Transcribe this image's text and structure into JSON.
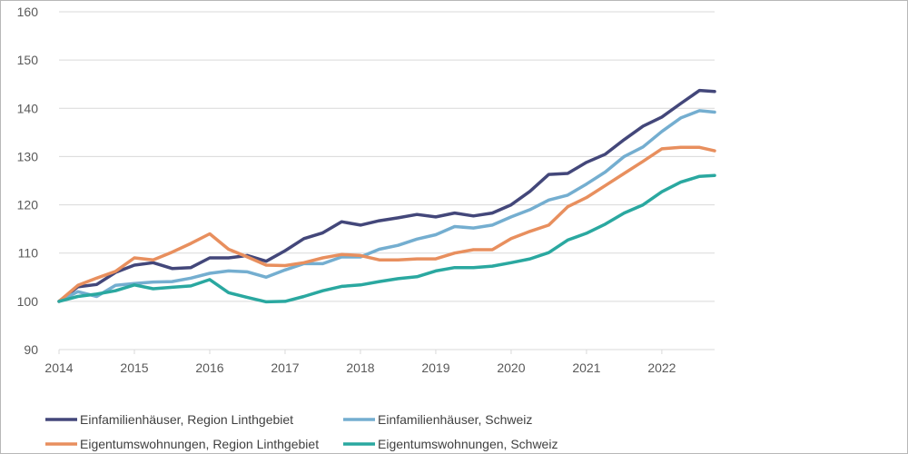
{
  "chart_data": {
    "type": "line",
    "title": "",
    "xlabel": "",
    "ylabel": "",
    "ylim": [
      90,
      160
    ],
    "xlim": [
      2014.0,
      2022.7
    ],
    "yticks": [
      90,
      100,
      110,
      120,
      130,
      140,
      150,
      160
    ],
    "xticks": [
      2014,
      2015,
      2016,
      2017,
      2018,
      2019,
      2020,
      2021,
      2022
    ],
    "grid": "horizontal",
    "legend_position": "bottom",
    "series": [
      {
        "name": "Einfamilienhäuser, Region Linthgebiet",
        "color": "#43477a",
        "points": [
          [
            2014.0,
            100.0
          ],
          [
            2014.25,
            103.0
          ],
          [
            2014.5,
            103.5
          ],
          [
            2014.75,
            106.0
          ],
          [
            2015.0,
            107.5
          ],
          [
            2015.25,
            108.0
          ],
          [
            2015.5,
            106.8
          ],
          [
            2015.75,
            107.0
          ],
          [
            2016.0,
            109.0
          ],
          [
            2016.25,
            109.0
          ],
          [
            2016.5,
            109.5
          ],
          [
            2016.75,
            108.3
          ],
          [
            2017.0,
            110.5
          ],
          [
            2017.25,
            113.0
          ],
          [
            2017.5,
            114.2
          ],
          [
            2017.75,
            116.5
          ],
          [
            2018.0,
            115.8
          ],
          [
            2018.25,
            116.7
          ],
          [
            2018.5,
            117.3
          ],
          [
            2018.75,
            118.0
          ],
          [
            2019.0,
            117.5
          ],
          [
            2019.25,
            118.3
          ],
          [
            2019.5,
            117.7
          ],
          [
            2019.75,
            118.3
          ],
          [
            2020.0,
            120.0
          ],
          [
            2020.25,
            122.8
          ],
          [
            2020.5,
            126.3
          ],
          [
            2020.75,
            126.5
          ],
          [
            2021.0,
            128.8
          ],
          [
            2021.25,
            130.5
          ],
          [
            2021.5,
            133.5
          ],
          [
            2021.75,
            136.3
          ],
          [
            2022.0,
            138.2
          ],
          [
            2022.25,
            141.0
          ],
          [
            2022.5,
            143.7
          ],
          [
            2022.7,
            143.5
          ]
        ]
      },
      {
        "name": "Einfamilienhäuser, Schweiz",
        "color": "#74aed0",
        "points": [
          [
            2014.0,
            100.0
          ],
          [
            2014.25,
            102.0
          ],
          [
            2014.5,
            101.0
          ],
          [
            2014.75,
            103.3
          ],
          [
            2015.0,
            103.7
          ],
          [
            2015.25,
            104.0
          ],
          [
            2015.5,
            104.1
          ],
          [
            2015.75,
            104.8
          ],
          [
            2016.0,
            105.8
          ],
          [
            2016.25,
            106.3
          ],
          [
            2016.5,
            106.1
          ],
          [
            2016.75,
            105.0
          ],
          [
            2017.0,
            106.5
          ],
          [
            2017.25,
            107.8
          ],
          [
            2017.5,
            107.8
          ],
          [
            2017.75,
            109.2
          ],
          [
            2018.0,
            109.2
          ],
          [
            2018.25,
            110.8
          ],
          [
            2018.5,
            111.6
          ],
          [
            2018.75,
            112.9
          ],
          [
            2019.0,
            113.8
          ],
          [
            2019.25,
            115.5
          ],
          [
            2019.5,
            115.2
          ],
          [
            2019.75,
            115.8
          ],
          [
            2020.0,
            117.5
          ],
          [
            2020.25,
            119.0
          ],
          [
            2020.5,
            121.0
          ],
          [
            2020.75,
            122.0
          ],
          [
            2021.0,
            124.3
          ],
          [
            2021.25,
            126.8
          ],
          [
            2021.5,
            130.0
          ],
          [
            2021.75,
            132.0
          ],
          [
            2022.0,
            135.2
          ],
          [
            2022.25,
            138.0
          ],
          [
            2022.5,
            139.5
          ],
          [
            2022.7,
            139.2
          ]
        ]
      },
      {
        "name": "Eigentumswohnungen, Region Linthgebiet",
        "color": "#e88f5e",
        "points": [
          [
            2014.0,
            100.0
          ],
          [
            2014.25,
            103.3
          ],
          [
            2014.5,
            104.8
          ],
          [
            2014.75,
            106.2
          ],
          [
            2015.0,
            109.0
          ],
          [
            2015.25,
            108.6
          ],
          [
            2015.5,
            110.2
          ],
          [
            2015.75,
            112.0
          ],
          [
            2016.0,
            114.0
          ],
          [
            2016.25,
            110.8
          ],
          [
            2016.5,
            109.2
          ],
          [
            2016.75,
            107.5
          ],
          [
            2017.0,
            107.4
          ],
          [
            2017.25,
            108.0
          ],
          [
            2017.5,
            109.0
          ],
          [
            2017.75,
            109.7
          ],
          [
            2018.0,
            109.5
          ],
          [
            2018.25,
            108.6
          ],
          [
            2018.5,
            108.6
          ],
          [
            2018.75,
            108.8
          ],
          [
            2019.0,
            108.8
          ],
          [
            2019.25,
            110.0
          ],
          [
            2019.5,
            110.7
          ],
          [
            2019.75,
            110.7
          ],
          [
            2020.0,
            113.0
          ],
          [
            2020.25,
            114.5
          ],
          [
            2020.5,
            115.8
          ],
          [
            2020.75,
            119.6
          ],
          [
            2021.0,
            121.5
          ],
          [
            2021.25,
            124.0
          ],
          [
            2021.5,
            126.5
          ],
          [
            2021.75,
            129.0
          ],
          [
            2022.0,
            131.6
          ],
          [
            2022.25,
            131.9
          ],
          [
            2022.5,
            131.9
          ],
          [
            2022.7,
            131.2
          ]
        ]
      },
      {
        "name": "Eigentumswohnungen, Schweiz",
        "color": "#2aa8a0",
        "points": [
          [
            2014.0,
            100.0
          ],
          [
            2014.25,
            101.0
          ],
          [
            2014.5,
            101.5
          ],
          [
            2014.75,
            102.2
          ],
          [
            2015.0,
            103.4
          ],
          [
            2015.25,
            102.6
          ],
          [
            2015.5,
            102.9
          ],
          [
            2015.75,
            103.2
          ],
          [
            2016.0,
            104.5
          ],
          [
            2016.25,
            101.8
          ],
          [
            2016.5,
            100.8
          ],
          [
            2016.75,
            99.9
          ],
          [
            2017.0,
            100.0
          ],
          [
            2017.25,
            101.0
          ],
          [
            2017.5,
            102.2
          ],
          [
            2017.75,
            103.1
          ],
          [
            2018.0,
            103.4
          ],
          [
            2018.25,
            104.1
          ],
          [
            2018.5,
            104.7
          ],
          [
            2018.75,
            105.1
          ],
          [
            2019.0,
            106.3
          ],
          [
            2019.25,
            107.0
          ],
          [
            2019.5,
            107.0
          ],
          [
            2019.75,
            107.3
          ],
          [
            2020.0,
            108.0
          ],
          [
            2020.25,
            108.8
          ],
          [
            2020.5,
            110.1
          ],
          [
            2020.75,
            112.7
          ],
          [
            2021.0,
            114.1
          ],
          [
            2021.25,
            116.0
          ],
          [
            2021.5,
            118.3
          ],
          [
            2021.75,
            120.0
          ],
          [
            2022.0,
            122.7
          ],
          [
            2022.25,
            124.7
          ],
          [
            2022.5,
            125.9
          ],
          [
            2022.7,
            126.1
          ]
        ]
      }
    ]
  }
}
